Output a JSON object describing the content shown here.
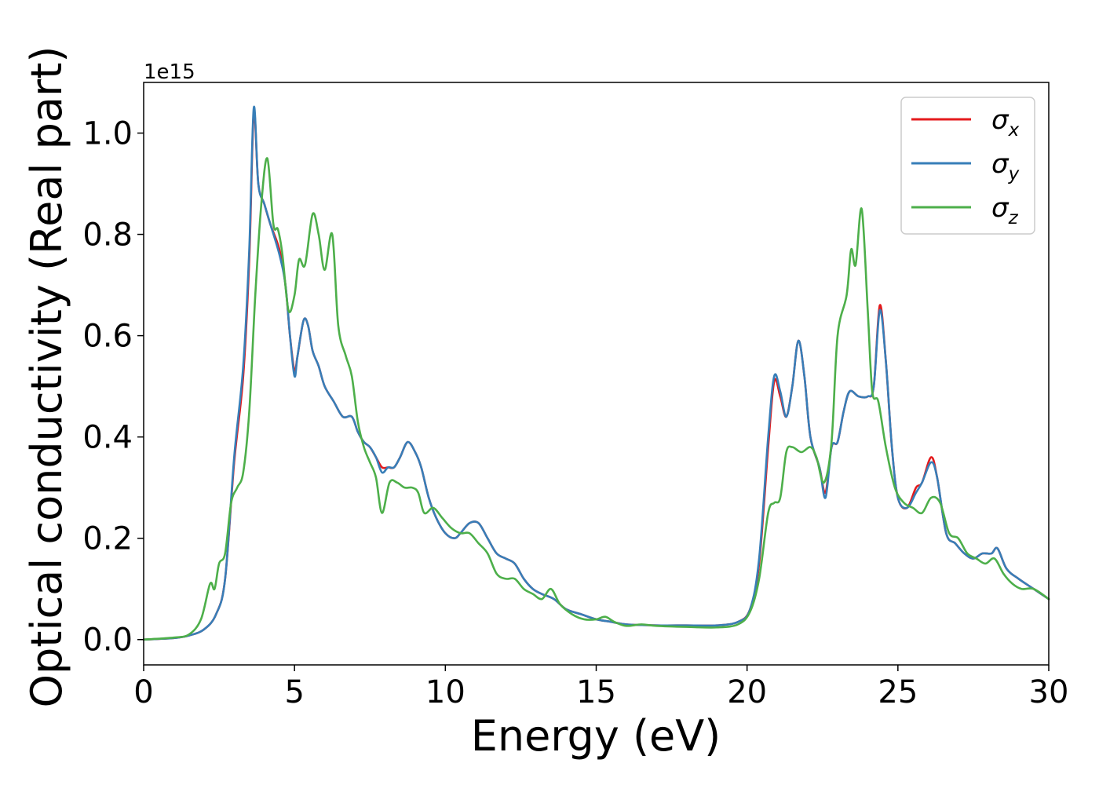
{
  "chart_data": {
    "type": "line",
    "title": "",
    "xlabel": "Energy (eV)",
    "ylabel": "Optical conductivity (Real part)",
    "y_offset_label": "1e15",
    "y_scale": 1000000000000000.0,
    "xlim": [
      0,
      30
    ],
    "ylim": [
      -0.05,
      1.1
    ],
    "x_ticks": [
      0,
      5,
      10,
      15,
      20,
      25,
      30
    ],
    "x_tick_labels": [
      "0",
      "5",
      "10",
      "15",
      "20",
      "25",
      "30"
    ],
    "y_ticks": [
      0.0,
      0.2,
      0.4,
      0.6,
      0.8,
      1.0
    ],
    "y_tick_labels": [
      "0.0",
      "0.2",
      "0.4",
      "0.6",
      "0.8",
      "1.0"
    ],
    "grid": false,
    "legend_position": "top-right",
    "series": [
      {
        "name": "σ",
        "subscript": "x",
        "color": "#e41a1c",
        "points": [
          [
            0,
            0
          ],
          [
            1,
            0.003
          ],
          [
            1.5,
            0.008
          ],
          [
            2,
            0.02
          ],
          [
            2.4,
            0.05
          ],
          [
            2.7,
            0.12
          ],
          [
            3.0,
            0.35
          ],
          [
            3.3,
            0.52
          ],
          [
            3.5,
            0.75
          ],
          [
            3.65,
            1.04
          ],
          [
            3.8,
            0.9
          ],
          [
            4.0,
            0.86
          ],
          [
            4.2,
            0.82
          ],
          [
            4.5,
            0.77
          ],
          [
            4.7,
            0.7
          ],
          [
            4.85,
            0.6
          ],
          [
            5.0,
            0.53
          ],
          [
            5.1,
            0.56
          ],
          [
            5.3,
            0.63
          ],
          [
            5.45,
            0.62
          ],
          [
            5.6,
            0.57
          ],
          [
            5.8,
            0.54
          ],
          [
            6.0,
            0.5
          ],
          [
            6.3,
            0.47
          ],
          [
            6.6,
            0.44
          ],
          [
            6.9,
            0.44
          ],
          [
            7.1,
            0.41
          ],
          [
            7.3,
            0.39
          ],
          [
            7.5,
            0.38
          ],
          [
            7.7,
            0.36
          ],
          [
            7.9,
            0.34
          ],
          [
            8.1,
            0.34
          ],
          [
            8.3,
            0.34
          ],
          [
            8.5,
            0.36
          ],
          [
            8.75,
            0.39
          ],
          [
            9.0,
            0.37
          ],
          [
            9.2,
            0.34
          ],
          [
            9.45,
            0.28
          ],
          [
            9.7,
            0.24
          ],
          [
            10.0,
            0.21
          ],
          [
            10.3,
            0.2
          ],
          [
            10.5,
            0.21
          ],
          [
            10.8,
            0.23
          ],
          [
            11.1,
            0.23
          ],
          [
            11.4,
            0.2
          ],
          [
            11.7,
            0.17
          ],
          [
            12.0,
            0.16
          ],
          [
            12.3,
            0.15
          ],
          [
            12.6,
            0.12
          ],
          [
            12.9,
            0.1
          ],
          [
            13.2,
            0.09
          ],
          [
            13.6,
            0.08
          ],
          [
            14.0,
            0.06
          ],
          [
            14.5,
            0.05
          ],
          [
            15.0,
            0.04
          ],
          [
            15.5,
            0.035
          ],
          [
            16.0,
            0.03
          ],
          [
            17.0,
            0.028
          ],
          [
            18.0,
            0.028
          ],
          [
            19.0,
            0.028
          ],
          [
            19.7,
            0.035
          ],
          [
            20.1,
            0.06
          ],
          [
            20.4,
            0.15
          ],
          [
            20.7,
            0.38
          ],
          [
            20.9,
            0.51
          ],
          [
            21.1,
            0.48
          ],
          [
            21.3,
            0.44
          ],
          [
            21.5,
            0.5
          ],
          [
            21.7,
            0.59
          ],
          [
            21.9,
            0.52
          ],
          [
            22.1,
            0.4
          ],
          [
            22.4,
            0.34
          ],
          [
            22.6,
            0.29
          ],
          [
            22.8,
            0.38
          ],
          [
            23.0,
            0.39
          ],
          [
            23.2,
            0.45
          ],
          [
            23.4,
            0.49
          ],
          [
            23.7,
            0.48
          ],
          [
            24.0,
            0.48
          ],
          [
            24.2,
            0.5
          ],
          [
            24.4,
            0.66
          ],
          [
            24.6,
            0.55
          ],
          [
            24.8,
            0.38
          ],
          [
            25.0,
            0.28
          ],
          [
            25.3,
            0.26
          ],
          [
            25.6,
            0.3
          ],
          [
            25.8,
            0.31
          ],
          [
            26.1,
            0.36
          ],
          [
            26.3,
            0.32
          ],
          [
            26.6,
            0.21
          ],
          [
            26.9,
            0.19
          ],
          [
            27.2,
            0.17
          ],
          [
            27.5,
            0.16
          ],
          [
            27.8,
            0.17
          ],
          [
            28.1,
            0.17
          ],
          [
            28.3,
            0.18
          ],
          [
            28.6,
            0.14
          ],
          [
            29.0,
            0.12
          ],
          [
            29.5,
            0.1
          ],
          [
            30.0,
            0.08
          ]
        ]
      },
      {
        "name": "σ",
        "subscript": "y",
        "color": "#377eb8",
        "points": [
          [
            0,
            0
          ],
          [
            1,
            0.003
          ],
          [
            1.5,
            0.008
          ],
          [
            2,
            0.02
          ],
          [
            2.4,
            0.05
          ],
          [
            2.7,
            0.12
          ],
          [
            3.0,
            0.36
          ],
          [
            3.3,
            0.54
          ],
          [
            3.5,
            0.77
          ],
          [
            3.65,
            1.05
          ],
          [
            3.8,
            0.9
          ],
          [
            4.0,
            0.86
          ],
          [
            4.2,
            0.82
          ],
          [
            4.5,
            0.76
          ],
          [
            4.7,
            0.7
          ],
          [
            4.85,
            0.6
          ],
          [
            5.0,
            0.52
          ],
          [
            5.1,
            0.56
          ],
          [
            5.3,
            0.63
          ],
          [
            5.45,
            0.62
          ],
          [
            5.6,
            0.57
          ],
          [
            5.8,
            0.54
          ],
          [
            6.0,
            0.5
          ],
          [
            6.3,
            0.47
          ],
          [
            6.6,
            0.44
          ],
          [
            6.9,
            0.44
          ],
          [
            7.1,
            0.41
          ],
          [
            7.3,
            0.39
          ],
          [
            7.5,
            0.38
          ],
          [
            7.7,
            0.36
          ],
          [
            7.9,
            0.33
          ],
          [
            8.1,
            0.34
          ],
          [
            8.3,
            0.34
          ],
          [
            8.5,
            0.36
          ],
          [
            8.75,
            0.39
          ],
          [
            9.0,
            0.37
          ],
          [
            9.2,
            0.34
          ],
          [
            9.45,
            0.28
          ],
          [
            9.7,
            0.24
          ],
          [
            10.0,
            0.21
          ],
          [
            10.3,
            0.2
          ],
          [
            10.5,
            0.21
          ],
          [
            10.8,
            0.23
          ],
          [
            11.1,
            0.23
          ],
          [
            11.4,
            0.2
          ],
          [
            11.7,
            0.17
          ],
          [
            12.0,
            0.16
          ],
          [
            12.3,
            0.15
          ],
          [
            12.6,
            0.12
          ],
          [
            12.9,
            0.1
          ],
          [
            13.2,
            0.09
          ],
          [
            13.6,
            0.08
          ],
          [
            14.0,
            0.06
          ],
          [
            14.5,
            0.05
          ],
          [
            15.0,
            0.04
          ],
          [
            15.5,
            0.035
          ],
          [
            16.0,
            0.03
          ],
          [
            17.0,
            0.028
          ],
          [
            18.0,
            0.028
          ],
          [
            19.0,
            0.028
          ],
          [
            19.7,
            0.035
          ],
          [
            20.1,
            0.06
          ],
          [
            20.4,
            0.16
          ],
          [
            20.7,
            0.4
          ],
          [
            20.9,
            0.52
          ],
          [
            21.1,
            0.49
          ],
          [
            21.3,
            0.44
          ],
          [
            21.5,
            0.5
          ],
          [
            21.7,
            0.59
          ],
          [
            21.9,
            0.52
          ],
          [
            22.1,
            0.4
          ],
          [
            22.4,
            0.34
          ],
          [
            22.6,
            0.28
          ],
          [
            22.8,
            0.38
          ],
          [
            23.0,
            0.39
          ],
          [
            23.2,
            0.45
          ],
          [
            23.4,
            0.49
          ],
          [
            23.7,
            0.48
          ],
          [
            24.0,
            0.48
          ],
          [
            24.2,
            0.5
          ],
          [
            24.4,
            0.65
          ],
          [
            24.6,
            0.55
          ],
          [
            24.8,
            0.38
          ],
          [
            25.0,
            0.28
          ],
          [
            25.3,
            0.26
          ],
          [
            25.6,
            0.29
          ],
          [
            25.8,
            0.31
          ],
          [
            26.1,
            0.35
          ],
          [
            26.3,
            0.32
          ],
          [
            26.6,
            0.21
          ],
          [
            26.9,
            0.19
          ],
          [
            27.2,
            0.17
          ],
          [
            27.5,
            0.16
          ],
          [
            27.8,
            0.17
          ],
          [
            28.1,
            0.17
          ],
          [
            28.3,
            0.18
          ],
          [
            28.6,
            0.14
          ],
          [
            29.0,
            0.12
          ],
          [
            29.5,
            0.1
          ],
          [
            30.0,
            0.08
          ]
        ]
      },
      {
        "name": "σ",
        "subscript": "z",
        "color": "#4daf4a",
        "points": [
          [
            0,
            0
          ],
          [
            1,
            0.004
          ],
          [
            1.5,
            0.01
          ],
          [
            1.9,
            0.04
          ],
          [
            2.2,
            0.11
          ],
          [
            2.35,
            0.1
          ],
          [
            2.5,
            0.15
          ],
          [
            2.7,
            0.17
          ],
          [
            2.9,
            0.27
          ],
          [
            3.1,
            0.3
          ],
          [
            3.3,
            0.33
          ],
          [
            3.5,
            0.45
          ],
          [
            3.7,
            0.68
          ],
          [
            3.9,
            0.86
          ],
          [
            4.1,
            0.95
          ],
          [
            4.3,
            0.82
          ],
          [
            4.45,
            0.81
          ],
          [
            4.6,
            0.76
          ],
          [
            4.8,
            0.65
          ],
          [
            5.0,
            0.68
          ],
          [
            5.15,
            0.75
          ],
          [
            5.35,
            0.74
          ],
          [
            5.6,
            0.84
          ],
          [
            5.8,
            0.8
          ],
          [
            6.0,
            0.73
          ],
          [
            6.25,
            0.8
          ],
          [
            6.45,
            0.62
          ],
          [
            6.7,
            0.56
          ],
          [
            6.9,
            0.52
          ],
          [
            7.1,
            0.43
          ],
          [
            7.3,
            0.38
          ],
          [
            7.5,
            0.35
          ],
          [
            7.7,
            0.32
          ],
          [
            7.9,
            0.25
          ],
          [
            8.15,
            0.31
          ],
          [
            8.4,
            0.31
          ],
          [
            8.65,
            0.3
          ],
          [
            8.9,
            0.3
          ],
          [
            9.1,
            0.29
          ],
          [
            9.3,
            0.25
          ],
          [
            9.6,
            0.26
          ],
          [
            9.9,
            0.24
          ],
          [
            10.2,
            0.22
          ],
          [
            10.5,
            0.21
          ],
          [
            10.8,
            0.21
          ],
          [
            11.1,
            0.19
          ],
          [
            11.4,
            0.17
          ],
          [
            11.7,
            0.13
          ],
          [
            12.0,
            0.12
          ],
          [
            12.3,
            0.12
          ],
          [
            12.6,
            0.1
          ],
          [
            12.9,
            0.09
          ],
          [
            13.2,
            0.08
          ],
          [
            13.5,
            0.1
          ],
          [
            13.8,
            0.07
          ],
          [
            14.2,
            0.05
          ],
          [
            14.6,
            0.04
          ],
          [
            15.0,
            0.04
          ],
          [
            15.3,
            0.045
          ],
          [
            15.6,
            0.035
          ],
          [
            16.0,
            0.027
          ],
          [
            16.5,
            0.03
          ],
          [
            17.0,
            0.027
          ],
          [
            18.0,
            0.025
          ],
          [
            19.0,
            0.024
          ],
          [
            19.7,
            0.03
          ],
          [
            20.1,
            0.055
          ],
          [
            20.4,
            0.12
          ],
          [
            20.7,
            0.25
          ],
          [
            20.9,
            0.27
          ],
          [
            21.1,
            0.28
          ],
          [
            21.3,
            0.37
          ],
          [
            21.5,
            0.38
          ],
          [
            21.8,
            0.37
          ],
          [
            22.1,
            0.38
          ],
          [
            22.3,
            0.36
          ],
          [
            22.55,
            0.31
          ],
          [
            22.8,
            0.39
          ],
          [
            23.0,
            0.6
          ],
          [
            23.3,
            0.68
          ],
          [
            23.45,
            0.77
          ],
          [
            23.6,
            0.74
          ],
          [
            23.8,
            0.85
          ],
          [
            24.0,
            0.65
          ],
          [
            24.15,
            0.49
          ],
          [
            24.35,
            0.47
          ],
          [
            24.6,
            0.38
          ],
          [
            24.9,
            0.3
          ],
          [
            25.2,
            0.27
          ],
          [
            25.5,
            0.26
          ],
          [
            25.8,
            0.25
          ],
          [
            26.1,
            0.28
          ],
          [
            26.4,
            0.27
          ],
          [
            26.7,
            0.21
          ],
          [
            27.0,
            0.2
          ],
          [
            27.3,
            0.17
          ],
          [
            27.6,
            0.16
          ],
          [
            27.9,
            0.15
          ],
          [
            28.2,
            0.16
          ],
          [
            28.5,
            0.13
          ],
          [
            28.8,
            0.11
          ],
          [
            29.1,
            0.1
          ],
          [
            29.5,
            0.1
          ],
          [
            30.0,
            0.08
          ]
        ]
      }
    ]
  }
}
